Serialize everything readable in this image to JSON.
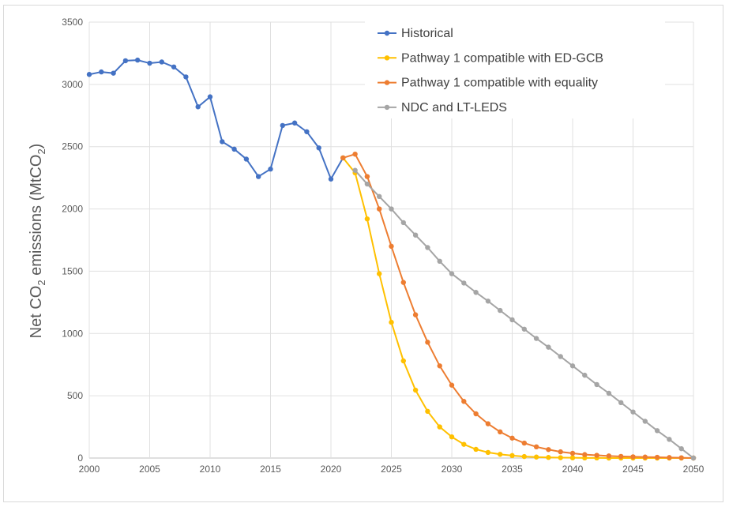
{
  "chart_data": {
    "type": "line",
    "title": "",
    "xlabel": "",
    "ylabel": "Net CO2 emissions (MtCO2)",
    "ylabel_parts": {
      "a": "Net CO",
      "sub1": "2",
      "b": " emissions (MtCO",
      "sub2": "2",
      "c": ")"
    },
    "xlim": [
      2000,
      2050
    ],
    "ylim": [
      0,
      3500
    ],
    "x_ticks": [
      2000,
      2005,
      2010,
      2015,
      2020,
      2025,
      2030,
      2035,
      2040,
      2045,
      2050
    ],
    "y_ticks": [
      0,
      500,
      1000,
      1500,
      2000,
      2500,
      3000,
      3500
    ],
    "grid": true,
    "legend_position": "top-right",
    "series": [
      {
        "name": "Historical",
        "color": "#4472c4",
        "x_start": 2000,
        "values": [
          3080,
          3100,
          3090,
          3190,
          3195,
          3170,
          3180,
          3140,
          3060,
          2820,
          2900,
          2540,
          2480,
          2400,
          2260,
          2320,
          2670,
          2690,
          2620,
          2490,
          2240,
          2410
        ]
      },
      {
        "name": "Pathway 1 compatible with ED-GCB",
        "color": "#ffc000",
        "x_start": 2021,
        "values": [
          2410,
          2290,
          1920,
          1480,
          1090,
          780,
          545,
          375,
          250,
          170,
          110,
          70,
          45,
          30,
          20,
          12,
          8,
          5,
          3,
          2,
          1,
          1,
          0,
          0,
          0,
          0,
          0,
          0,
          0,
          0
        ]
      },
      {
        "name": "Pathway 1 compatible with equality",
        "color": "#ed7d31",
        "x_start": 2021,
        "values": [
          2410,
          2440,
          2260,
          2000,
          1700,
          1410,
          1150,
          930,
          740,
          585,
          455,
          355,
          275,
          210,
          160,
          120,
          90,
          68,
          50,
          38,
          28,
          22,
          17,
          13,
          10,
          8,
          6,
          4,
          2,
          0
        ]
      },
      {
        "name": "NDC and LT-LEDS",
        "color": "#a5a5a5",
        "x_start": 2022,
        "values": [
          2310,
          2200,
          2100,
          2000,
          1890,
          1790,
          1690,
          1580,
          1480,
          1405,
          1330,
          1260,
          1185,
          1110,
          1035,
          960,
          890,
          815,
          740,
          665,
          590,
          520,
          445,
          370,
          295,
          220,
          150,
          75,
          0
        ]
      }
    ]
  }
}
